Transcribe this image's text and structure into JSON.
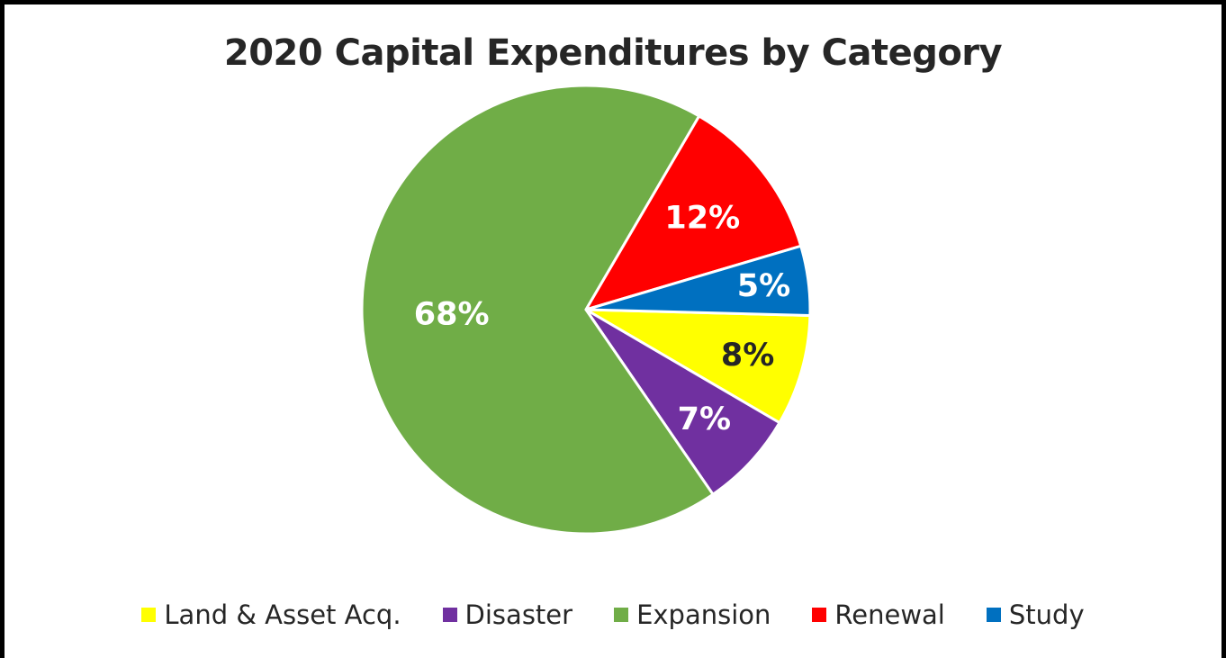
{
  "chart_data": {
    "type": "pie",
    "title": "2020 Capital Expenditures by Category",
    "categories": [
      "Land & Asset Acq.",
      "Disaster",
      "Expansion",
      "Renewal",
      "Study"
    ],
    "values": [
      8,
      7,
      68,
      12,
      5
    ],
    "data_labels": [
      "8%",
      "7%",
      "68%",
      "12%",
      "5%"
    ],
    "colors": [
      "#ffff00",
      "#7030a0",
      "#70ad47",
      "#ff0000",
      "#0070c0"
    ],
    "label_colors": [
      "#262626",
      "#ffffff",
      "#ffffff",
      "#ffffff",
      "#ffffff"
    ],
    "legend_position": "bottom"
  }
}
